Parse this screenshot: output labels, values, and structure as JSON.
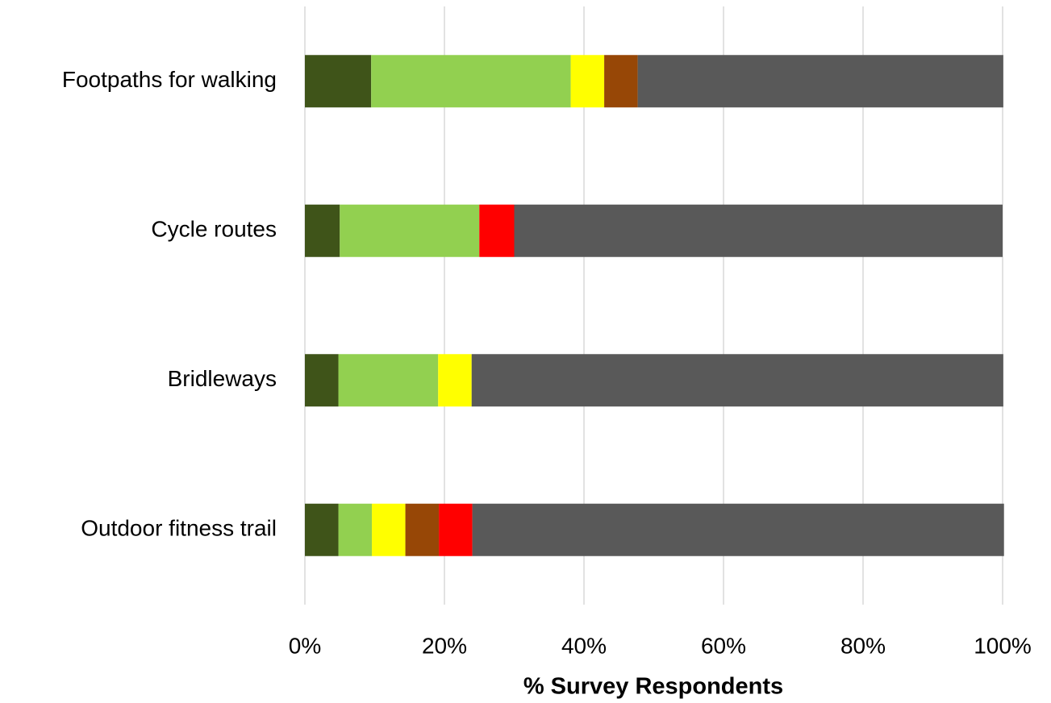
{
  "chart_data": {
    "type": "stacked_barh",
    "xlabel": "% Survey Respondents",
    "categories": [
      "Footpaths for walking",
      "Cycle routes",
      "Bridleways",
      "Outdoor fitness trail"
    ],
    "series": [
      {
        "color": "#3f5419",
        "values": [
          9.5,
          5,
          4.8,
          4.8
        ]
      },
      {
        "color": "#92d050",
        "values": [
          28.6,
          20,
          14.3,
          4.8
        ]
      },
      {
        "color": "#ffff00",
        "values": [
          4.8,
          0,
          4.8,
          4.8
        ]
      },
      {
        "color": "#974706",
        "values": [
          4.8,
          0,
          0,
          4.8
        ]
      },
      {
        "color": "#ff0000",
        "values": [
          0,
          5,
          0,
          4.8
        ]
      },
      {
        "color": "#595959",
        "values": [
          52.4,
          70,
          76.2,
          76.2
        ]
      }
    ],
    "xlim": [
      0,
      100
    ],
    "xticks": [
      {
        "value": 0,
        "label": "0%"
      },
      {
        "value": 20,
        "label": "20%"
      },
      {
        "value": 40,
        "label": "40%"
      },
      {
        "value": 60,
        "label": "60%"
      },
      {
        "value": 80,
        "label": "80%"
      },
      {
        "value": 100,
        "label": "100%"
      }
    ],
    "grid": true
  }
}
